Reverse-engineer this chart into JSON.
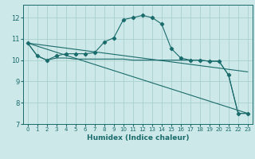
{
  "xlabel": "Humidex (Indice chaleur)",
  "background_color": "#cde8e8",
  "grid_color": "#aacfcf",
  "line_color": "#1a6b6b",
  "xlim": [
    -0.5,
    23.5
  ],
  "ylim": [
    7,
    12.6
  ],
  "yticks": [
    7,
    8,
    9,
    10,
    11,
    12
  ],
  "xticks": [
    0,
    1,
    2,
    3,
    4,
    5,
    6,
    7,
    8,
    9,
    10,
    11,
    12,
    13,
    14,
    15,
    16,
    17,
    18,
    19,
    20,
    21,
    22,
    23
  ],
  "series": [
    {
      "x": [
        0,
        1,
        2,
        3,
        4,
        5,
        6,
        7,
        8,
        9,
        10,
        11,
        12,
        13,
        14,
        15,
        16,
        17,
        18,
        19,
        20,
        21,
        22,
        23
      ],
      "y": [
        10.8,
        10.2,
        10.0,
        10.2,
        10.3,
        10.3,
        10.3,
        10.35,
        10.85,
        11.05,
        11.9,
        12.0,
        12.1,
        12.0,
        11.7,
        10.55,
        10.1,
        10.0,
        10.0,
        9.95,
        9.95,
        9.3,
        7.5,
        7.5
      ],
      "marker": true
    },
    {
      "x": [
        0,
        1,
        2,
        3,
        4,
        5,
        6,
        7,
        8,
        9,
        10,
        11,
        12,
        13,
        14,
        15,
        16,
        17,
        18,
        19,
        20,
        21,
        22,
        23
      ],
      "y": [
        10.8,
        10.2,
        10.0,
        10.1,
        10.1,
        10.05,
        10.05,
        10.05,
        10.05,
        10.05,
        10.05,
        10.0,
        10.0,
        10.0,
        10.0,
        10.0,
        10.0,
        10.0,
        10.0,
        9.95,
        9.95,
        9.3,
        7.5,
        7.5
      ],
      "marker": false
    },
    {
      "x": [
        0,
        23
      ],
      "y": [
        10.8,
        7.5
      ],
      "marker": false
    },
    {
      "x": [
        0,
        23
      ],
      "y": [
        10.8,
        9.45
      ],
      "marker": false
    }
  ]
}
